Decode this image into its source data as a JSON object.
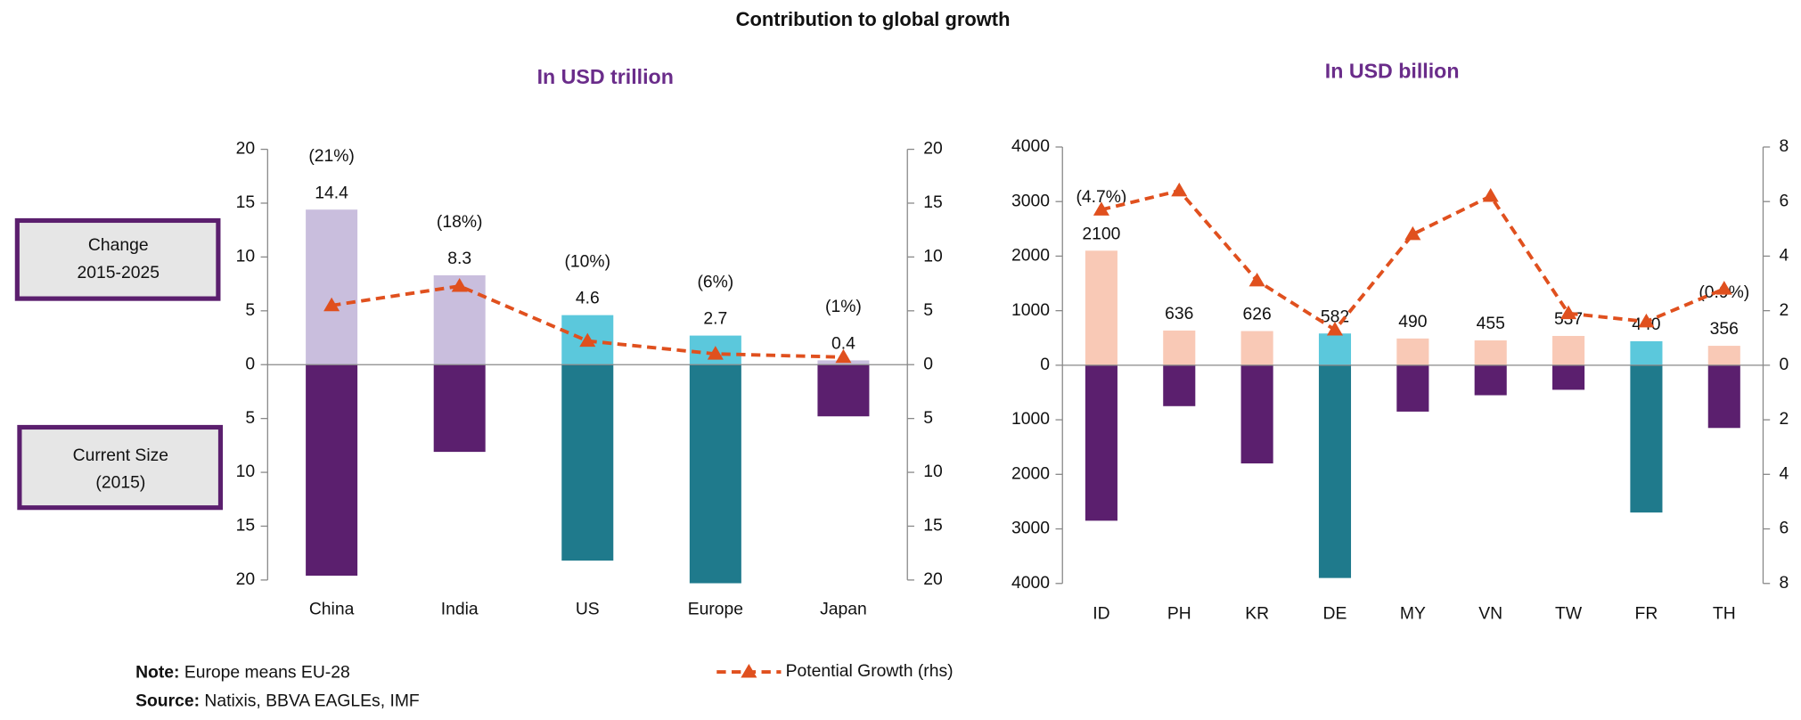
{
  "title": "Contribution to global growth",
  "boxes": [
    [
      "Change",
      "2015-2025"
    ],
    [
      "Current Size",
      "(2015)"
    ]
  ],
  "note": {
    "label": "Note:",
    "text": "Europe means EU-28"
  },
  "source": {
    "label": "Source:",
    "text": "Natixis, BBVA EAGLEs, IMF"
  },
  "chart_data": [
    {
      "type": "bar",
      "subtitle": "In USD trillion",
      "categories": [
        "China",
        "India",
        "US",
        "Europe",
        "Japan"
      ],
      "series": [
        {
          "values": [
            14.4,
            8.3,
            4.6,
            2.7,
            0.4
          ],
          "colors": [
            "#c9bedd",
            "#c9bedd",
            "#5bc8dc",
            "#5bc8dc",
            "#c9bedd"
          ]
        },
        {
          "values": [
            -19.6,
            -8.1,
            -18.2,
            -20.3,
            -4.8
          ],
          "colors": [
            "#5b1f6e",
            "#5b1f6e",
            "#1f7a8c",
            "#1f7a8c",
            "#5b1f6e"
          ]
        },
        {
          "name": "Potential Growth (rhs)",
          "type": "line",
          "axis": "y2",
          "color": "#e0501e",
          "values": [
            5.5,
            7.3,
            2.2,
            1.0,
            0.7
          ]
        }
      ],
      "annotations": [
        "(21%)",
        "(18%)",
        "(10%)",
        "(6%)",
        "(1%)"
      ],
      "ylim": [
        -20,
        20
      ],
      "yticks": [
        20,
        15,
        10,
        5,
        0,
        {
          "value": -5,
          "label": "5"
        },
        {
          "value": -10,
          "label": "10"
        },
        {
          "value": -15,
          "label": "15"
        },
        {
          "value": -20,
          "label": "20"
        }
      ],
      "y2lim": [
        -20,
        20
      ],
      "y2ticks": [
        20,
        15,
        10,
        5,
        0,
        {
          "value": -5,
          "label": "5"
        },
        {
          "value": -10,
          "label": "10"
        },
        {
          "value": -15,
          "label": "15"
        },
        {
          "value": -20,
          "label": "20"
        }
      ]
    },
    {
      "type": "bar",
      "subtitle": "In USD billion",
      "categories": [
        "ID",
        "PH",
        "KR",
        "DE",
        "MY",
        "VN",
        "TW",
        "FR",
        "TH"
      ],
      "series": [
        {
          "values": [
            2100,
            636,
            626,
            582,
            490,
            455,
            537,
            440,
            356
          ],
          "colors": [
            "#f9c9b6",
            "#f9c9b6",
            "#f9c9b6",
            "#5bc8dc",
            "#f9c9b6",
            "#f9c9b6",
            "#f9c9b6",
            "#5bc8dc",
            "#f9c9b6"
          ]
        },
        {
          "values": [
            -2850,
            -750,
            -1800,
            -3900,
            -850,
            -550,
            -450,
            -2700,
            -1150
          ],
          "colors": [
            "#5b1f6e",
            "#5b1f6e",
            "#5b1f6e",
            "#1f7a8c",
            "#5b1f6e",
            "#5b1f6e",
            "#5b1f6e",
            "#1f7a8c",
            "#5b1f6e"
          ]
        },
        {
          "type": "line",
          "axis": "y2",
          "color": "#e0501e",
          "values": [
            5.7,
            6.4,
            3.1,
            1.3,
            4.8,
            6.2,
            1.9,
            1.6,
            2.8
          ]
        }
      ],
      "annotations": [
        "(4.7%)",
        null,
        null,
        null,
        null,
        null,
        null,
        null,
        "(0.9%)"
      ],
      "ylim": [
        -4000,
        4000
      ],
      "yticks": [
        4000,
        3000,
        2000,
        1000,
        0,
        {
          "value": -1000,
          "label": "1000"
        },
        {
          "value": -2000,
          "label": "2000"
        },
        {
          "value": -3000,
          "label": "3000"
        },
        {
          "value": -4000,
          "label": "4000"
        }
      ],
      "y2lim": [
        -8,
        8
      ],
      "y2ticks": [
        8,
        6,
        4,
        2,
        0,
        {
          "value": -2,
          "label": "2"
        },
        {
          "value": -4,
          "label": "4"
        },
        {
          "value": -6,
          "label": "6"
        },
        {
          "value": -8,
          "label": "8"
        }
      ]
    }
  ]
}
